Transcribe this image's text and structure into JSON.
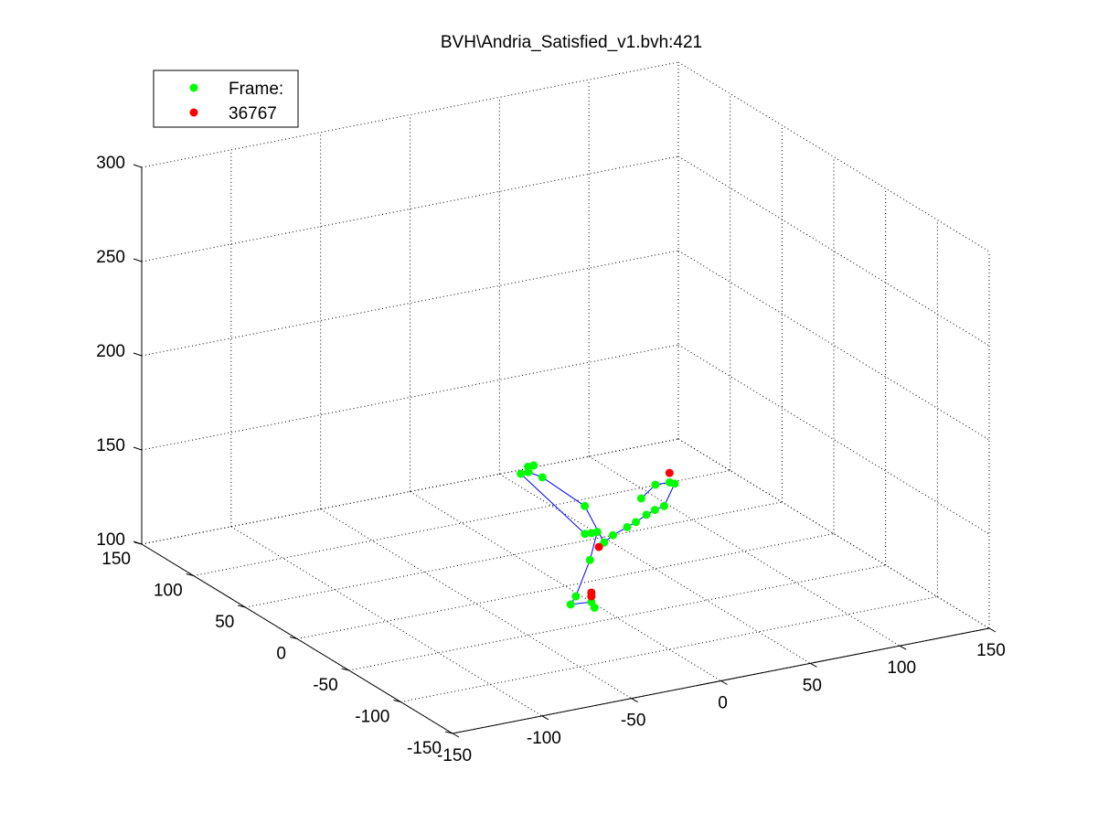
{
  "chart_data": {
    "type": "scatter",
    "title": "BVH\\Andria_Satisfied_v1.bvh:421",
    "xlabel": "",
    "ylabel": "",
    "zlabel": "",
    "xlim": [
      -150,
      150
    ],
    "ylim": [
      -150,
      150
    ],
    "zlim": [
      100,
      300
    ],
    "x_ticks": [
      "-150",
      "-100",
      "-50",
      "0",
      "50",
      "100",
      "150"
    ],
    "y_ticks": [
      "-150",
      "-100",
      "-50",
      "0",
      "50",
      "100",
      "150"
    ],
    "z_ticks": [
      "100",
      "150",
      "200",
      "250",
      "300"
    ],
    "grid": true,
    "legend_placement": "top-left",
    "legend": [
      {
        "label": "Frame:",
        "color": "#00ff00",
        "marker": "circle"
      },
      {
        "label": "36767",
        "color": "#ff0000",
        "marker": "circle"
      }
    ],
    "series": [
      {
        "name": "Frame:",
        "color": "#00ff00",
        "points": [
          {
            "x": 25,
            "y": -30,
            "z": 152
          },
          {
            "x": 30,
            "y": -35,
            "z": 160
          },
          {
            "x": 35,
            "y": -40,
            "z": 162
          },
          {
            "x": 35,
            "y": -45,
            "z": 163
          },
          {
            "x": 32,
            "y": -40,
            "z": 150
          },
          {
            "x": 28,
            "y": -38,
            "z": 148
          },
          {
            "x": 25,
            "y": -35,
            "z": 145
          },
          {
            "x": 22,
            "y": -30,
            "z": 140
          },
          {
            "x": 20,
            "y": -25,
            "z": 136
          },
          {
            "x": 15,
            "y": -20,
            "z": 131
          },
          {
            "x": 10,
            "y": -20,
            "z": 128
          },
          {
            "x": 5,
            "y": -10,
            "z": 145
          },
          {
            "x": -10,
            "y": 5,
            "z": 158
          },
          {
            "x": -15,
            "y": 10,
            "z": 160
          },
          {
            "x": -14,
            "y": 12,
            "z": 162
          },
          {
            "x": -16,
            "y": 8,
            "z": 161
          },
          {
            "x": -12,
            "y": 10,
            "z": 163
          },
          {
            "x": -18,
            "y": 12,
            "z": 159
          },
          {
            "x": 8,
            "y": -5,
            "z": 128
          },
          {
            "x": 10,
            "y": -8,
            "z": 129
          },
          {
            "x": 12,
            "y": -10,
            "z": 130
          },
          {
            "x": 5,
            "y": -15,
            "z": 118
          },
          {
            "x": 0,
            "y": -10,
            "z": 98
          },
          {
            "x": 0,
            "y": -5,
            "z": 92
          },
          {
            "x": 0,
            "y": -25,
            "z": 100
          },
          {
            "x": 0,
            "y": -28,
            "z": 98
          }
        ]
      },
      {
        "name": "36767",
        "color": "#ff0000",
        "points": [
          {
            "x": 35,
            "y": -40,
            "z": 167
          },
          {
            "x": 10,
            "y": -15,
            "z": 124
          },
          {
            "x": 0,
            "y": -25,
            "z": 105
          },
          {
            "x": 0,
            "y": -25,
            "z": 103
          }
        ]
      }
    ],
    "bones_color": "#0000ff"
  }
}
